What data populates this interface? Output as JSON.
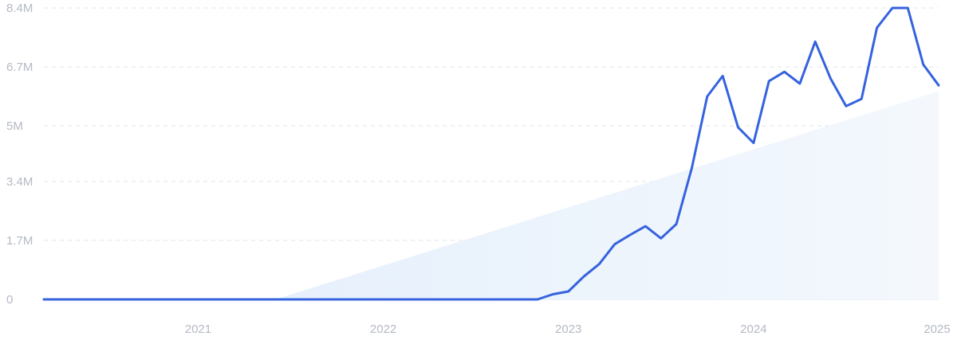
{
  "chart_data": {
    "type": "line",
    "x_range": [
      "2020-03",
      "2025-01"
    ],
    "ylim": [
      0,
      8400000
    ],
    "grid": true,
    "y_ticks": [
      {
        "value": 0,
        "label": "0"
      },
      {
        "value": 1700000,
        "label": "1.7M"
      },
      {
        "value": 3400000,
        "label": "3.4M"
      },
      {
        "value": 5000000,
        "label": "5M"
      },
      {
        "value": 6700000,
        "label": "6.7M"
      },
      {
        "value": 8400000,
        "label": "8.4M"
      }
    ],
    "x_ticks": [
      {
        "value": "2021-01",
        "label": "2021"
      },
      {
        "value": "2022-01",
        "label": "2022"
      },
      {
        "value": "2023-01",
        "label": "2023"
      },
      {
        "value": "2024-01",
        "label": "2024"
      },
      {
        "value": "2025-01",
        "label": "2025"
      }
    ],
    "series": [
      {
        "color": "#3563de",
        "points": [
          {
            "x": "2020-03",
            "y": 0
          },
          {
            "x": "2022-11",
            "y": 0
          },
          {
            "x": "2022-12",
            "y": 150000
          },
          {
            "x": "2023-01",
            "y": 230000
          },
          {
            "x": "2023-02",
            "y": 660000
          },
          {
            "x": "2023-03",
            "y": 1020000
          },
          {
            "x": "2023-04",
            "y": 1590000
          },
          {
            "x": "2023-05",
            "y": 1860000
          },
          {
            "x": "2023-06",
            "y": 2110000
          },
          {
            "x": "2023-07",
            "y": 1760000
          },
          {
            "x": "2023-08",
            "y": 2170000
          },
          {
            "x": "2023-09",
            "y": 3790000
          },
          {
            "x": "2023-10",
            "y": 5850000
          },
          {
            "x": "2023-11",
            "y": 6440000
          },
          {
            "x": "2023-12",
            "y": 4960000
          },
          {
            "x": "2024-01",
            "y": 4510000
          },
          {
            "x": "2024-02",
            "y": 6290000
          },
          {
            "x": "2024-03",
            "y": 6560000
          },
          {
            "x": "2024-04",
            "y": 6220000
          },
          {
            "x": "2024-05",
            "y": 7430000
          },
          {
            "x": "2024-06",
            "y": 6360000
          },
          {
            "x": "2024-07",
            "y": 5570000
          },
          {
            "x": "2024-08",
            "y": 5780000
          },
          {
            "x": "2024-09",
            "y": 7830000
          },
          {
            "x": "2024-10",
            "y": 8400000
          },
          {
            "x": "2024-11",
            "y": 8400000
          },
          {
            "x": "2024-12",
            "y": 6770000
          },
          {
            "x": "2025-01",
            "y": 6170000
          }
        ]
      }
    ],
    "trend": {
      "color": "#e8f1fc",
      "start": {
        "x": "2021-06",
        "y": 0
      },
      "end": {
        "x": "2025-01",
        "y": 6000000
      }
    }
  }
}
